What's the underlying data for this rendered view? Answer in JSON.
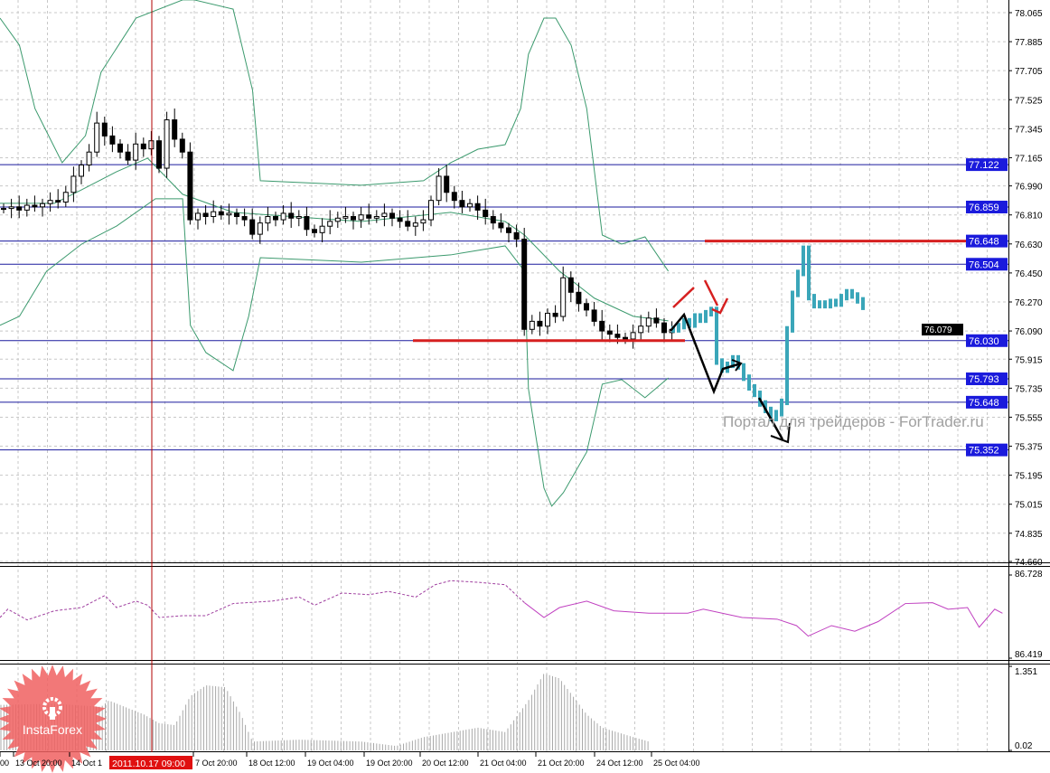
{
  "chart_data": {
    "type": "candlestick",
    "symbol_pane": {
      "yaxis": {
        "range": [
          74.66,
          78.065
        ],
        "ticks": [
          "78.065",
          "77.885",
          "77.705",
          "77.525",
          "77.345",
          "77.165",
          "76.990",
          "76.810",
          "76.630",
          "76.450",
          "76.270",
          "76.090",
          "75.915",
          "75.735",
          "75.555",
          "75.375",
          "75.195",
          "75.015",
          "74.835",
          "74.660"
        ]
      },
      "candle_closes": [
        76.85,
        76.86,
        76.84,
        76.87,
        76.86,
        76.88,
        76.9,
        76.89,
        76.95,
        77.05,
        77.12,
        77.2,
        77.38,
        77.3,
        77.25,
        77.2,
        77.15,
        77.25,
        77.22,
        77.27,
        77.1,
        77.4,
        77.28,
        77.2,
        76.78,
        76.82,
        76.8,
        76.83,
        76.81,
        76.82,
        76.8,
        76.78,
        76.69,
        76.76,
        76.8,
        76.78,
        76.82,
        76.79,
        76.8,
        76.72,
        76.7,
        76.74,
        76.77,
        76.79,
        76.8,
        76.78,
        76.81,
        76.79,
        76.8,
        76.82,
        76.79,
        76.77,
        76.74,
        76.76,
        76.78,
        76.9,
        77.05,
        76.95,
        76.9,
        76.86,
        76.88,
        76.84,
        76.8,
        76.76,
        76.73,
        76.7,
        76.66,
        76.1,
        76.15,
        76.12,
        76.2,
        76.18,
        76.42,
        76.33,
        76.26,
        76.22,
        76.15,
        76.09,
        76.07,
        76.05,
        76.04,
        76.08,
        76.12,
        76.17,
        76.14,
        76.08,
        76.1
      ],
      "forecast_closes": [
        76.1,
        76.12,
        76.15,
        76.13,
        76.18,
        76.16,
        76.2,
        76.22,
        75.9,
        75.85,
        75.88,
        75.92,
        75.87,
        75.8,
        75.74,
        75.7,
        75.64,
        75.6,
        75.55,
        75.58,
        75.65,
        76.1,
        76.32,
        76.45,
        76.6,
        76.3,
        76.25,
        76.26,
        76.25,
        76.27,
        76.26,
        76.3,
        76.33,
        76.31,
        76.28,
        76.24
      ],
      "bollinger_upper": [
        [
          0,
          78.031
        ],
        [
          5,
          77.863
        ],
        [
          9,
          77.47
        ],
        [
          16,
          77.134
        ],
        [
          22,
          77.302
        ],
        [
          26,
          77.695
        ],
        [
          35,
          78.031
        ],
        [
          47,
          78.144
        ],
        [
          50,
          78.144
        ],
        [
          60,
          78.087
        ],
        [
          65,
          77.583
        ],
        [
          67,
          77.022
        ],
        [
          93,
          76.994
        ],
        [
          109,
          77.022
        ],
        [
          116,
          77.134
        ],
        [
          123,
          77.218
        ],
        [
          130,
          77.246
        ],
        [
          134,
          77.47
        ],
        [
          136,
          77.807
        ],
        [
          140,
          78.031
        ],
        [
          143,
          78.031
        ],
        [
          147,
          77.863
        ],
        [
          151,
          77.47
        ],
        [
          155,
          76.685
        ],
        [
          160,
          76.629
        ],
        [
          166,
          76.674
        ],
        [
          172,
          76.461
        ]
      ],
      "bollinger_lower": [
        [
          0,
          76.125
        ],
        [
          5,
          76.181
        ],
        [
          12,
          76.461
        ],
        [
          21,
          76.629
        ],
        [
          30,
          76.741
        ],
        [
          40,
          76.91
        ],
        [
          47,
          76.91
        ],
        [
          49,
          76.125
        ],
        [
          53,
          75.956
        ],
        [
          60,
          75.844
        ],
        [
          64,
          76.181
        ],
        [
          67,
          76.545
        ],
        [
          93,
          76.517
        ],
        [
          116,
          76.562
        ],
        [
          130,
          76.618
        ],
        [
          135,
          76.461
        ],
        [
          136,
          75.732
        ],
        [
          140,
          75.115
        ],
        [
          142,
          75.003
        ],
        [
          145,
          75.087
        ],
        [
          151,
          75.339
        ],
        [
          155,
          75.76
        ],
        [
          160,
          75.788
        ],
        [
          166,
          75.676
        ],
        [
          172,
          75.799
        ]
      ],
      "bollinger_middle": [
        [
          0,
          76.882
        ],
        [
          14,
          76.882
        ],
        [
          21,
          76.966
        ],
        [
          30,
          77.078
        ],
        [
          38,
          77.162
        ],
        [
          47,
          76.938
        ],
        [
          60,
          76.826
        ],
        [
          93,
          76.769
        ],
        [
          116,
          76.826
        ],
        [
          130,
          76.769
        ],
        [
          135,
          76.685
        ],
        [
          144,
          76.461
        ],
        [
          153,
          76.293
        ],
        [
          163,
          76.181
        ],
        [
          172,
          76.153
        ]
      ],
      "levels": [
        "77.122",
        "76.859",
        "76.648",
        "76.504",
        "76.030",
        "75.793",
        "75.648",
        "75.352"
      ],
      "current_price": "76.079",
      "red_support_resistance": [
        76.648,
        76.03
      ],
      "colors": {
        "candles": "#000000",
        "forecast": "#3aa6b9",
        "bands": "#3c9a6e",
        "levels": "#1a1a9e",
        "level_label_bg": "#1a1adc",
        "red_lines": "#d62020",
        "crosshair": "#b00000"
      }
    },
    "oscillator_pane": {
      "yaxis": {
        "range": [
          86.419,
          86.728
        ],
        "ticks": [
          "86.728",
          "86.419"
        ]
      },
      "line": [
        [
          0,
          86.57
        ],
        [
          2,
          86.601
        ],
        [
          7,
          86.561
        ],
        [
          14,
          86.595
        ],
        [
          21,
          86.607
        ],
        [
          27,
          86.652
        ],
        [
          30,
          86.607
        ],
        [
          35,
          86.631
        ],
        [
          38,
          86.616
        ],
        [
          41,
          86.57
        ],
        [
          47,
          86.577
        ],
        [
          53,
          86.577
        ],
        [
          60,
          86.622
        ],
        [
          70,
          86.631
        ],
        [
          77,
          86.646
        ],
        [
          81,
          86.616
        ],
        [
          88,
          86.661
        ],
        [
          95,
          86.655
        ],
        [
          100,
          86.667
        ],
        [
          107,
          86.646
        ],
        [
          112,
          86.692
        ],
        [
          116,
          86.707
        ],
        [
          123,
          86.701
        ],
        [
          130,
          86.692
        ],
        [
          135,
          86.625
        ],
        [
          140,
          86.57
        ],
        [
          144,
          86.607
        ],
        [
          151,
          86.631
        ],
        [
          158,
          86.595
        ],
        [
          167,
          86.586
        ],
        [
          177,
          86.586
        ],
        [
          181,
          86.601
        ],
        [
          191,
          86.57
        ],
        [
          200,
          86.564
        ],
        [
          205,
          86.54
        ],
        [
          208,
          86.501
        ],
        [
          214,
          86.54
        ],
        [
          220,
          86.519
        ],
        [
          226,
          86.555
        ],
        [
          233,
          86.622
        ],
        [
          240,
          86.625
        ],
        [
          244,
          86.601
        ],
        [
          249,
          86.607
        ],
        [
          252,
          86.534
        ],
        [
          256,
          86.601
        ],
        [
          258,
          86.586
        ]
      ],
      "colors": {
        "line": "#c040c0"
      }
    },
    "histogram_pane": {
      "yaxis": {
        "range": [
          0.02,
          1.351
        ],
        "ticks": [
          "1.351",
          "0.02"
        ]
      },
      "envelope": [
        [
          0,
          0.74
        ],
        [
          14,
          0.76
        ],
        [
          26,
          0.71
        ],
        [
          28,
          0.81
        ],
        [
          37,
          0.59
        ],
        [
          41,
          0.45
        ],
        [
          45,
          0.42
        ],
        [
          49,
          0.88
        ],
        [
          53,
          1.05
        ],
        [
          58,
          1.02
        ],
        [
          62,
          0.59
        ],
        [
          65,
          0.16
        ],
        [
          77,
          0.19
        ],
        [
          93,
          0.16
        ],
        [
          102,
          0.09
        ],
        [
          109,
          0.23
        ],
        [
          123,
          0.38
        ],
        [
          130,
          0.31
        ],
        [
          136,
          0.81
        ],
        [
          140,
          1.24
        ],
        [
          144,
          1.16
        ],
        [
          151,
          0.59
        ],
        [
          155,
          0.38
        ],
        [
          163,
          0.23
        ],
        [
          167,
          0.16
        ]
      ],
      "colors": {
        "bars": "#a8a8a8"
      }
    },
    "xaxis": {
      "ticks": [
        "00",
        "13 Oct 20:00",
        "14 Oct 1",
        "7 Oct 20:00",
        "18 Oct 12:00",
        "19 Oct 04:00",
        "19 Oct 20:00",
        "20 Oct 12:00",
        "21 Oct 04:00",
        "21 Oct 20:00",
        "24 Oct 12:00",
        "25 Oct 04:00"
      ],
      "crosshair_label": "2011.10.17 09:00"
    },
    "grid": true
  },
  "watermark": "Портал для трейдеров - ForTrader.ru",
  "logo": {
    "text": "InstaForex",
    "color": "#f06060"
  }
}
